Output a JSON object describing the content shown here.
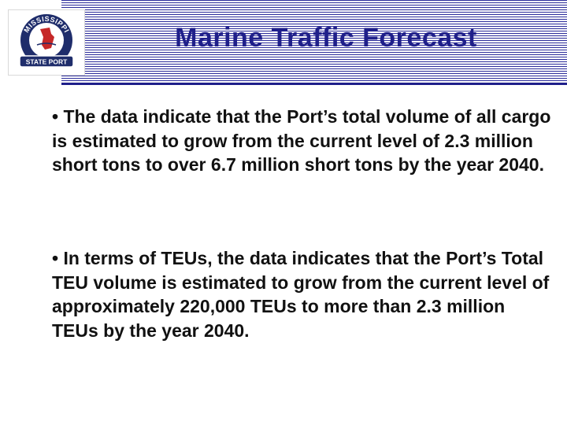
{
  "slide": {
    "title": "Marine Traffic Forecast",
    "logo": {
      "arc_text": "MISSISSIPPI",
      "banner_text": "STATE PORT"
    },
    "bullets": [
      "• The data indicate that the Port’s total volume of all cargo is estimated to grow from the current level of 2.3 million short tons to over 6.7 million short tons by the year 2040.",
      "• In terms of TEUs, the data indicates that the Port’s Total TEU volume is estimated to grow from the current level of approximately 220,000 TEUs to more than 2.3 million TEUs by the year 2040."
    ]
  },
  "colors": {
    "title": "#1f1f8a",
    "stripes": "#2b2b9a",
    "logo_ring": "#1f2d6b",
    "logo_accent": "#c62828"
  }
}
